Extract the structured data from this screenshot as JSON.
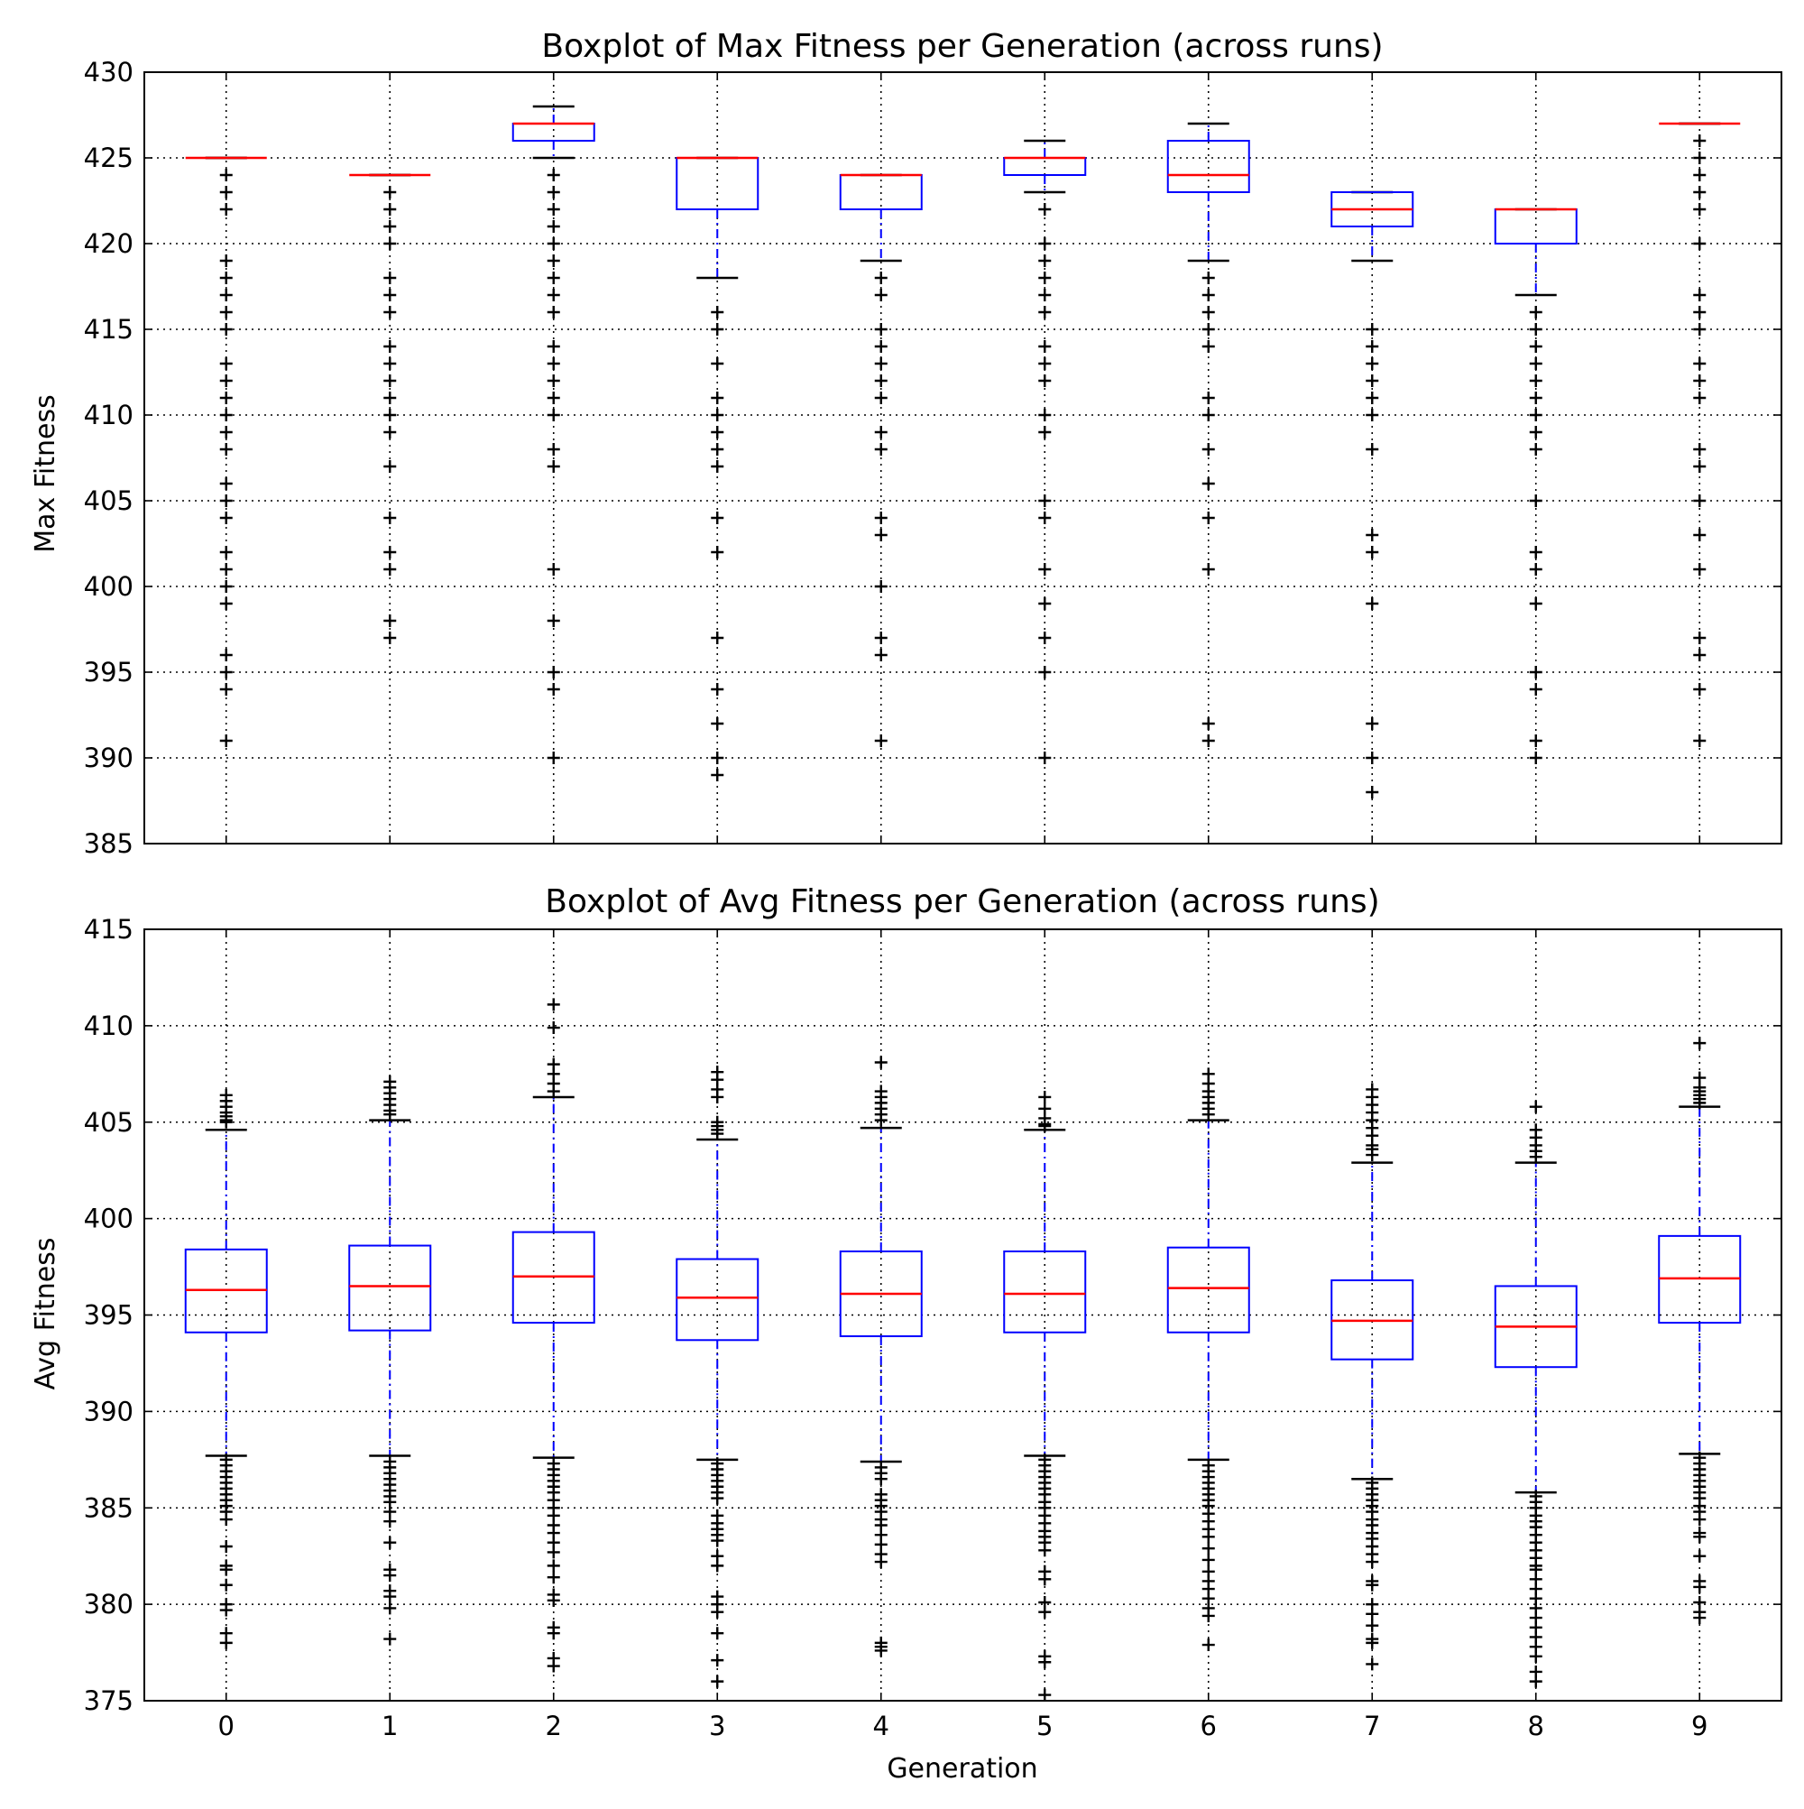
{
  "colors": {
    "box": "#0000ff",
    "median": "#ff0000",
    "whisker": "#0000ff",
    "cap": "#000000",
    "flier": "#000000",
    "grid": "#000000",
    "axes": "#000000"
  },
  "chart_data": [
    {
      "type": "boxplot",
      "title": "Boxplot of Max Fitness per Generation (across runs)",
      "xlabel": "",
      "ylabel": "Max Fitness",
      "categories": [
        "0",
        "1",
        "2",
        "3",
        "4",
        "5",
        "6",
        "7",
        "8",
        "9"
      ],
      "ylim": [
        385,
        430
      ],
      "yticks": [
        385,
        390,
        395,
        400,
        405,
        410,
        415,
        420,
        425,
        430
      ],
      "grid": true,
      "show_x_tick_labels": false,
      "boxes": [
        {
          "whislo": 425,
          "q1": 425,
          "med": 425,
          "q3": 425,
          "whishi": 425,
          "fliers": [
            424,
            423,
            422,
            419,
            418,
            417,
            416,
            415,
            413,
            412,
            411,
            410,
            409,
            408,
            406,
            405,
            404,
            402,
            401,
            400,
            399,
            396,
            395,
            394,
            391
          ]
        },
        {
          "whislo": 424,
          "q1": 424,
          "med": 424,
          "q3": 424,
          "whishi": 424,
          "fliers": [
            423,
            422,
            421,
            420,
            418,
            417,
            416,
            414,
            413,
            412,
            411,
            410,
            409,
            407,
            404,
            402,
            401,
            398,
            397
          ]
        },
        {
          "whislo": 425,
          "q1": 426,
          "med": 427,
          "q3": 427,
          "whishi": 428,
          "fliers": [
            424,
            423,
            422,
            421,
            420,
            419,
            418,
            417,
            416,
            414,
            413,
            412,
            411,
            410,
            408,
            407,
            401,
            398,
            395,
            394,
            390
          ]
        },
        {
          "whislo": 418,
          "q1": 422,
          "med": 425,
          "q3": 425,
          "whishi": 425,
          "fliers": [
            416,
            415,
            413,
            411,
            410,
            409,
            408,
            407,
            404,
            402,
            397,
            394,
            392,
            390,
            389
          ]
        },
        {
          "whislo": 419,
          "q1": 422,
          "med": 424,
          "q3": 424,
          "whishi": 424,
          "fliers": [
            418,
            417,
            415,
            414,
            413,
            412,
            411,
            409,
            408,
            404,
            403,
            400,
            397,
            396,
            391
          ]
        },
        {
          "whislo": 423,
          "q1": 424,
          "med": 425,
          "q3": 425,
          "whishi": 426,
          "fliers": [
            422,
            420,
            419,
            418,
            417,
            416,
            414,
            413,
            412,
            410,
            409,
            405,
            404,
            401,
            399,
            397,
            395,
            390
          ]
        },
        {
          "whislo": 419,
          "q1": 423,
          "med": 424,
          "q3": 426,
          "whishi": 427,
          "fliers": [
            418,
            417,
            416,
            415,
            414,
            411,
            410,
            408,
            406,
            404,
            401,
            392,
            391
          ]
        },
        {
          "whislo": 419,
          "q1": 421,
          "med": 422,
          "q3": 423,
          "whishi": 423,
          "fliers": [
            415,
            414,
            413,
            412,
            411,
            410,
            408,
            403,
            402,
            399,
            392,
            390,
            388
          ]
        },
        {
          "whislo": 417,
          "q1": 420,
          "med": 422,
          "q3": 422,
          "whishi": 422,
          "fliers": [
            416,
            415,
            414,
            413,
            412,
            411,
            410,
            409,
            408,
            405,
            402,
            401,
            399,
            395,
            394,
            391,
            390
          ]
        },
        {
          "whislo": 427,
          "q1": 427,
          "med": 427,
          "q3": 427,
          "whishi": 427,
          "fliers": [
            426,
            425,
            424,
            423,
            422,
            420,
            417,
            416,
            415,
            413,
            412,
            411,
            408,
            407,
            405,
            403,
            401,
            397,
            396,
            394,
            391
          ]
        }
      ]
    },
    {
      "type": "boxplot",
      "title": "Boxplot of Avg Fitness per Generation (across runs)",
      "xlabel": "Generation",
      "ylabel": "Avg Fitness",
      "categories": [
        "0",
        "1",
        "2",
        "3",
        "4",
        "5",
        "6",
        "7",
        "8",
        "9"
      ],
      "ylim": [
        375,
        415
      ],
      "yticks": [
        375,
        380,
        385,
        390,
        395,
        400,
        405,
        410,
        415
      ],
      "grid": true,
      "show_x_tick_labels": true,
      "boxes": [
        {
          "whislo": 387.7,
          "q1": 394.1,
          "med": 396.3,
          "q3": 398.4,
          "whishi": 404.6,
          "fliers": [
            406.4,
            406.1,
            405.8,
            405.5,
            405.3,
            405.1,
            405.0,
            387.5,
            387.2,
            386.9,
            386.6,
            386.3,
            386.0,
            385.7,
            385.4,
            385.1,
            384.8,
            384.4,
            383.0,
            382.0,
            381.8,
            381.0,
            380.0,
            379.7,
            378.5,
            378.0
          ]
        },
        {
          "whislo": 387.7,
          "q1": 394.2,
          "med": 396.5,
          "q3": 398.6,
          "whishi": 405.1,
          "fliers": [
            407.1,
            406.8,
            406.5,
            406.2,
            405.9,
            405.6,
            405.4,
            387.4,
            387.1,
            386.8,
            386.5,
            386.2,
            385.9,
            385.6,
            385.3,
            384.8,
            384.3,
            383.2,
            381.8,
            381.5,
            380.7,
            380.4,
            379.8,
            378.2
          ]
        },
        {
          "whislo": 387.6,
          "q1": 394.6,
          "med": 397.0,
          "q3": 399.3,
          "whishi": 406.3,
          "fliers": [
            411.1,
            409.9,
            408.0,
            407.5,
            407.0,
            406.6,
            387.3,
            387.0,
            386.7,
            386.4,
            386.1,
            385.8,
            385.4,
            385.0,
            384.6,
            384.1,
            383.7,
            383.2,
            382.7,
            382.0,
            381.4,
            380.5,
            380.2,
            378.8,
            378.5,
            377.2,
            376.8
          ]
        },
        {
          "whislo": 387.5,
          "q1": 393.7,
          "med": 395.9,
          "q3": 397.9,
          "whishi": 404.1,
          "fliers": [
            407.6,
            407.2,
            406.7,
            406.3,
            405.0,
            404.8,
            404.6,
            404.4,
            387.3,
            387.0,
            386.7,
            386.4,
            386.1,
            385.8,
            385.5,
            384.6,
            384.2,
            383.9,
            383.6,
            383.3,
            382.5,
            382.0,
            380.4,
            380.0,
            379.6,
            378.5,
            377.1,
            376.0
          ]
        },
        {
          "whislo": 387.4,
          "q1": 393.9,
          "med": 396.1,
          "q3": 398.3,
          "whishi": 404.7,
          "fliers": [
            408.1,
            406.6,
            406.3,
            406.0,
            405.7,
            405.4,
            405.1,
            387.1,
            386.8,
            386.5,
            385.7,
            385.4,
            385.1,
            384.8,
            384.4,
            384.1,
            383.6,
            383.1,
            382.6,
            382.2,
            378.0,
            377.8,
            377.6
          ]
        },
        {
          "whislo": 387.7,
          "q1": 394.1,
          "med": 396.1,
          "q3": 398.3,
          "whishi": 404.6,
          "fliers": [
            406.3,
            405.7,
            405.2,
            404.9,
            404.8,
            387.5,
            387.2,
            386.9,
            386.6,
            386.3,
            386.0,
            385.7,
            385.3,
            385.0,
            384.6,
            384.2,
            383.8,
            383.5,
            383.2,
            382.8,
            381.7,
            381.3,
            380.1,
            379.6,
            377.3,
            377.0,
            375.3
          ]
        },
        {
          "whislo": 387.5,
          "q1": 394.1,
          "med": 396.4,
          "q3": 398.5,
          "whishi": 405.1,
          "fliers": [
            407.5,
            407.0,
            406.6,
            406.3,
            406.0,
            405.7,
            405.4,
            387.2,
            386.9,
            386.6,
            386.3,
            386.0,
            385.7,
            385.4,
            385.1,
            384.7,
            384.3,
            383.9,
            383.5,
            382.9,
            382.3,
            381.7,
            381.2,
            380.8,
            380.3,
            379.8,
            379.4,
            377.9
          ]
        },
        {
          "whislo": 386.5,
          "q1": 392.7,
          "med": 394.7,
          "q3": 396.8,
          "whishi": 402.9,
          "fliers": [
            406.7,
            406.3,
            405.9,
            405.5,
            405.1,
            404.7,
            404.3,
            403.8,
            403.6,
            403.3,
            386.3,
            386.0,
            385.7,
            385.4,
            385.1,
            384.8,
            384.4,
            384.1,
            383.7,
            383.4,
            383.0,
            382.6,
            382.2,
            381.2,
            381.0,
            380.0,
            379.5,
            378.9,
            378.2,
            378.0,
            376.9
          ]
        },
        {
          "whislo": 385.8,
          "q1": 392.3,
          "med": 394.4,
          "q3": 396.5,
          "whishi": 402.9,
          "fliers": [
            405.8,
            404.6,
            404.2,
            403.8,
            403.5,
            403.2,
            385.6,
            385.3,
            385.0,
            384.6,
            384.3,
            384.0,
            383.6,
            383.2,
            382.8,
            382.4,
            382.0,
            381.8,
            381.3,
            380.8,
            380.3,
            379.8,
            379.3,
            378.8,
            378.3,
            377.8,
            377.3,
            376.5,
            376.0
          ]
        },
        {
          "whislo": 387.8,
          "q1": 394.6,
          "med": 396.9,
          "q3": 399.1,
          "whishi": 405.8,
          "fliers": [
            409.1,
            407.3,
            406.8,
            406.6,
            406.4,
            406.2,
            406.0,
            387.6,
            387.3,
            387.0,
            386.7,
            386.4,
            386.1,
            385.8,
            385.5,
            385.1,
            384.8,
            384.4,
            383.7,
            383.5,
            382.5,
            381.2,
            380.9,
            380.1,
            379.6,
            379.3
          ]
        }
      ]
    }
  ]
}
